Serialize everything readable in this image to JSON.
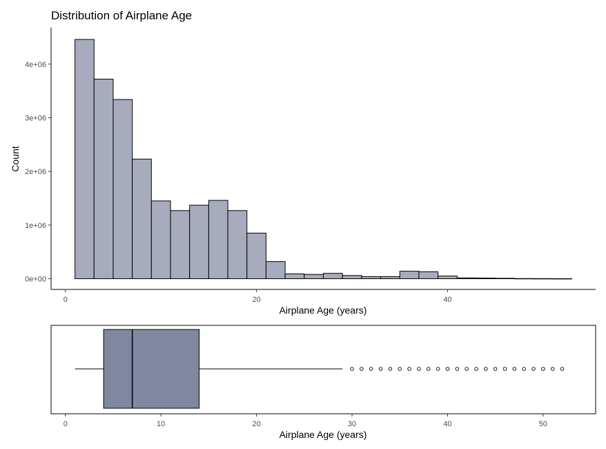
{
  "chart_data": [
    {
      "type": "histogram",
      "title": "Distribution of Airplane Age",
      "xlabel": "Airplane Age (years)",
      "ylabel": "Count",
      "xlim": [
        -1.5,
        55.5
      ],
      "ylim": [
        -200000,
        4680000
      ],
      "x_ticks": [
        0,
        20,
        40
      ],
      "x_tick_labels": [
        "0",
        "20",
        "40"
      ],
      "y_ticks": [
        0,
        1000000,
        2000000,
        3000000,
        4000000
      ],
      "y_tick_labels": [
        "0e+00",
        "1e+06",
        "2e+06",
        "3e+06",
        "4e+06"
      ],
      "bin_width": 2,
      "bins": [
        {
          "start": 1,
          "end": 3,
          "count": 4460000
        },
        {
          "start": 3,
          "end": 5,
          "count": 3720000
        },
        {
          "start": 5,
          "end": 7,
          "count": 3340000
        },
        {
          "start": 7,
          "end": 9,
          "count": 2230000
        },
        {
          "start": 9,
          "end": 11,
          "count": 1450000
        },
        {
          "start": 11,
          "end": 13,
          "count": 1270000
        },
        {
          "start": 13,
          "end": 15,
          "count": 1370000
        },
        {
          "start": 15,
          "end": 17,
          "count": 1460000
        },
        {
          "start": 17,
          "end": 19,
          "count": 1270000
        },
        {
          "start": 19,
          "end": 21,
          "count": 850000
        },
        {
          "start": 21,
          "end": 23,
          "count": 320000
        },
        {
          "start": 23,
          "end": 25,
          "count": 90000
        },
        {
          "start": 25,
          "end": 27,
          "count": 80000
        },
        {
          "start": 27,
          "end": 29,
          "count": 100000
        },
        {
          "start": 29,
          "end": 31,
          "count": 60000
        },
        {
          "start": 31,
          "end": 33,
          "count": 40000
        },
        {
          "start": 33,
          "end": 35,
          "count": 40000
        },
        {
          "start": 35,
          "end": 37,
          "count": 140000
        },
        {
          "start": 37,
          "end": 39,
          "count": 130000
        },
        {
          "start": 39,
          "end": 41,
          "count": 50000
        },
        {
          "start": 41,
          "end": 43,
          "count": 15000
        },
        {
          "start": 43,
          "end": 45,
          "count": 12000
        },
        {
          "start": 45,
          "end": 47,
          "count": 8000
        },
        {
          "start": 47,
          "end": 49,
          "count": 3000
        },
        {
          "start": 49,
          "end": 51,
          "count": 2000
        },
        {
          "start": 51,
          "end": 53,
          "count": 1000
        }
      ],
      "fill_color": "#a7abbd",
      "edge_color": "#000000",
      "grid": false
    },
    {
      "type": "boxplot",
      "xlabel": "Airplane Age (years)",
      "xlim": [
        -1.5,
        55.5
      ],
      "x_ticks": [
        0,
        10,
        20,
        30,
        40,
        50
      ],
      "x_tick_labels": [
        "0",
        "10",
        "20",
        "30",
        "40",
        "50"
      ],
      "min": 1,
      "q1": 4,
      "median": 7,
      "q3": 14,
      "whisker_high": 29,
      "outliers": [
        30,
        31,
        32,
        33,
        34,
        35,
        36,
        37,
        38,
        39,
        40,
        41,
        42,
        43,
        44,
        45,
        46,
        47,
        48,
        49,
        50,
        51,
        52
      ],
      "fill_color": "#8088a0",
      "edge_color": "#000000",
      "grid": false
    }
  ]
}
